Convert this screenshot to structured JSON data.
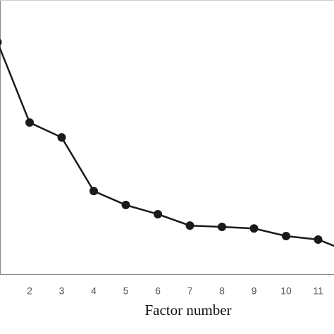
{
  "chart_data": {
    "type": "line",
    "x_label": "Factor number",
    "categories": [
      null,
      "2",
      "3",
      "4",
      "5",
      "6",
      "7",
      "8",
      "9",
      "10",
      "11",
      null
    ],
    "series": [
      {
        "color": "#1a1a1a",
        "values": [
          7.31,
          4.78,
          4.31,
          2.62,
          2.18,
          1.89,
          1.53,
          1.49,
          1.44,
          1.2,
          1.09,
          0.69
        ]
      }
    ],
    "ylim": [
      0,
      8
    ]
  }
}
